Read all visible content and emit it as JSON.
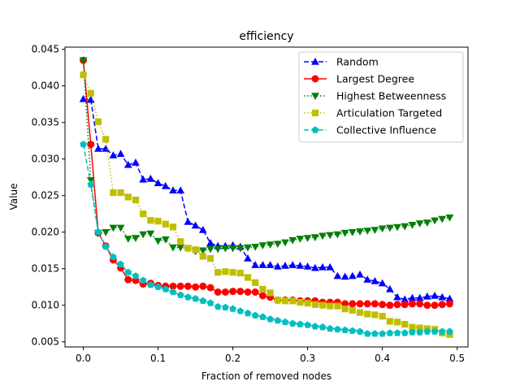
{
  "chart_data": {
    "type": "line",
    "title": "efficiency",
    "xlabel": "Fraction of removed nodes",
    "ylabel": "Value",
    "xlim": [
      -0.0245,
      0.5145
    ],
    "ylim": [
      0.0043,
      0.0453
    ],
    "xticks": [
      0.0,
      0.1,
      0.2,
      0.3,
      0.4,
      0.5
    ],
    "xtick_labels": [
      "0.0",
      "0.1",
      "0.2",
      "0.3",
      "0.4",
      "0.5"
    ],
    "yticks": [
      0.005,
      0.01,
      0.015,
      0.02,
      0.025,
      0.03,
      0.035,
      0.04,
      0.045
    ],
    "ytick_labels": [
      "0.005",
      "0.010",
      "0.015",
      "0.020",
      "0.025",
      "0.030",
      "0.035",
      "0.040",
      "0.045"
    ],
    "legend_position": "top-right",
    "x": [
      0.0,
      0.01,
      0.02,
      0.03,
      0.04,
      0.05,
      0.06,
      0.07,
      0.08,
      0.09,
      0.1,
      0.11,
      0.12,
      0.13,
      0.14,
      0.15,
      0.16,
      0.17,
      0.18,
      0.19,
      0.2,
      0.21,
      0.22,
      0.23,
      0.24,
      0.25,
      0.26,
      0.27,
      0.28,
      0.29,
      0.3,
      0.31,
      0.32,
      0.33,
      0.34,
      0.35,
      0.36,
      0.37,
      0.38,
      0.39,
      0.4,
      0.41,
      0.42,
      0.43,
      0.44,
      0.45,
      0.46,
      0.47,
      0.48,
      0.49
    ],
    "series": [
      {
        "name": "Random",
        "color": "#0000ff",
        "marker": "triangle-up",
        "dash": "dashed",
        "values": [
          0.0382,
          0.0381,
          0.0314,
          0.0314,
          0.0305,
          0.0307,
          0.0292,
          0.0295,
          0.0272,
          0.0273,
          0.0267,
          0.0263,
          0.0257,
          0.0257,
          0.0214,
          0.0209,
          0.0203,
          0.0185,
          0.0181,
          0.0181,
          0.0182,
          0.018,
          0.0164,
          0.0155,
          0.0155,
          0.0155,
          0.0153,
          0.0154,
          0.0155,
          0.0154,
          0.0153,
          0.0151,
          0.0152,
          0.0152,
          0.014,
          0.0139,
          0.014,
          0.0142,
          0.0135,
          0.0133,
          0.013,
          0.0122,
          0.0111,
          0.0108,
          0.011,
          0.011,
          0.0112,
          0.0113,
          0.0111,
          0.0109
        ]
      },
      {
        "name": "Largest Degree",
        "color": "#ff0000",
        "marker": "circle",
        "dash": "solid",
        "values": [
          0.0435,
          0.032,
          0.0199,
          0.0181,
          0.0162,
          0.0151,
          0.0135,
          0.0134,
          0.0129,
          0.013,
          0.0127,
          0.0126,
          0.0126,
          0.0126,
          0.0126,
          0.0125,
          0.0126,
          0.0124,
          0.0118,
          0.0118,
          0.0119,
          0.0119,
          0.0118,
          0.0118,
          0.0113,
          0.0111,
          0.0107,
          0.0107,
          0.0107,
          0.0106,
          0.0106,
          0.0106,
          0.0104,
          0.0104,
          0.0104,
          0.0102,
          0.0102,
          0.0102,
          0.0102,
          0.0102,
          0.0101,
          0.01,
          0.0101,
          0.0101,
          0.0102,
          0.0102,
          0.01,
          0.01,
          0.0101,
          0.0102
        ]
      },
      {
        "name": "Highest Betweenness",
        "color": "#008000",
        "marker": "triangle-down",
        "dash": "dotted",
        "values": [
          0.0435,
          0.0271,
          0.0199,
          0.02,
          0.0206,
          0.0206,
          0.0191,
          0.0192,
          0.0197,
          0.0198,
          0.0188,
          0.019,
          0.0179,
          0.0179,
          0.0178,
          0.0174,
          0.0175,
          0.0177,
          0.0177,
          0.0178,
          0.0178,
          0.0178,
          0.0179,
          0.018,
          0.0182,
          0.0183,
          0.0184,
          0.0186,
          0.0189,
          0.0191,
          0.0192,
          0.0193,
          0.0195,
          0.0196,
          0.0197,
          0.0199,
          0.02,
          0.0201,
          0.0202,
          0.0203,
          0.0205,
          0.0206,
          0.0207,
          0.0208,
          0.021,
          0.0212,
          0.0213,
          0.0216,
          0.0218,
          0.022
        ]
      },
      {
        "name": "Articulation Targeted",
        "color": "#bfbf00",
        "marker": "square",
        "dash": "dotted",
        "values": [
          0.0415,
          0.039,
          0.0351,
          0.0327,
          0.0254,
          0.0254,
          0.0248,
          0.0244,
          0.0225,
          0.0216,
          0.0215,
          0.0211,
          0.0207,
          0.0187,
          0.0178,
          0.0176,
          0.0167,
          0.0164,
          0.0145,
          0.0146,
          0.0145,
          0.0144,
          0.0138,
          0.0131,
          0.0122,
          0.0117,
          0.0107,
          0.0106,
          0.0106,
          0.0104,
          0.0103,
          0.0101,
          0.01,
          0.0099,
          0.0099,
          0.0095,
          0.0093,
          0.009,
          0.0088,
          0.0087,
          0.0085,
          0.0078,
          0.0077,
          0.0074,
          0.007,
          0.0069,
          0.0068,
          0.0067,
          0.0062,
          0.006
        ]
      },
      {
        "name": "Collective Influence",
        "color": "#00bfbf",
        "marker": "pentagon",
        "dash": "dashed",
        "values": [
          0.032,
          0.0265,
          0.02,
          0.018,
          0.0166,
          0.0156,
          0.0145,
          0.014,
          0.0134,
          0.0128,
          0.0125,
          0.0122,
          0.0118,
          0.0114,
          0.0111,
          0.0109,
          0.0106,
          0.0103,
          0.0098,
          0.0097,
          0.0095,
          0.0092,
          0.0089,
          0.0086,
          0.0084,
          0.0081,
          0.0079,
          0.0077,
          0.0075,
          0.0074,
          0.0073,
          0.0071,
          0.007,
          0.0068,
          0.0067,
          0.0066,
          0.0065,
          0.0064,
          0.0061,
          0.0061,
          0.0061,
          0.0062,
          0.0062,
          0.0062,
          0.0063,
          0.0063,
          0.0064,
          0.0064,
          0.0064,
          0.0064
        ]
      }
    ]
  }
}
